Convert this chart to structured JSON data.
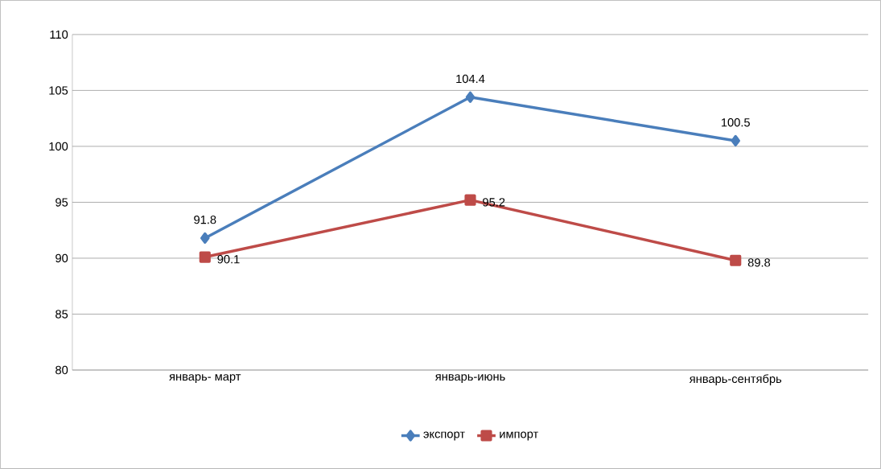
{
  "chart_data": {
    "type": "line",
    "categories": [
      "январь- март",
      "январь-июнь",
      "январь-сентябрь"
    ],
    "series": [
      {
        "name": "экспорт",
        "color": "#4a7ebb",
        "marker": "diamond",
        "values": [
          91.8,
          104.4,
          100.5
        ]
      },
      {
        "name": "импорт",
        "color": "#be4b48",
        "marker": "square",
        "values": [
          90.1,
          95.2,
          89.8
        ]
      }
    ],
    "ylim": [
      80,
      110
    ],
    "yticks": [
      80,
      85,
      90,
      95,
      100,
      105,
      110
    ],
    "grid": "y",
    "legend": "bottom",
    "data_labels": true,
    "line_style": "solid"
  }
}
